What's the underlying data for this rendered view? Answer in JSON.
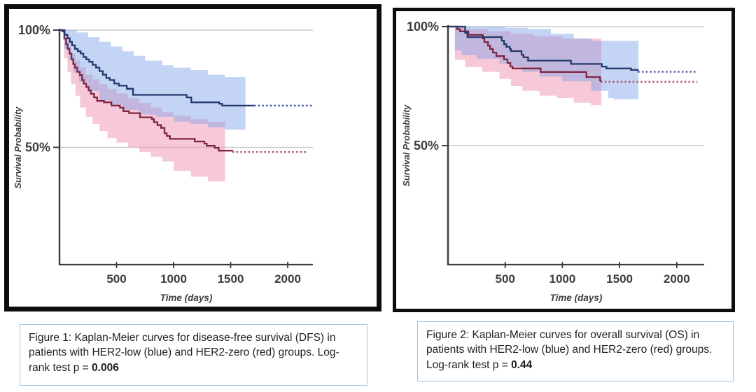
{
  "figures": [
    {
      "caption_prefix": "Figure 1: Kaplan-Meier curves for disease-free survival (DFS) in patients with HER2-low (blue) and HER2-zero (red) groups. Log-rank test p = ",
      "p_value": "0.006"
    },
    {
      "caption_prefix": "Figure 2: Kaplan-Meier curves for overall survival (OS) in patients with HER2-low (blue) and HER2-zero (red) groups. Log-rank test p = ",
      "p_value": "0.44"
    }
  ],
  "colors": {
    "blue_line": "#24386d",
    "red_line": "#7c2440",
    "blue_dotted": "#4353a4",
    "red_dotted": "#b2506b",
    "blue_band": "rgba(125,160,230,0.45)",
    "pink_band": "rgba(238,135,168,0.45)",
    "grid": "#cbcbcb",
    "axis": "#3c3c3c",
    "tick_text": "#3d3d3d",
    "caption_border": "#9dc3e6",
    "frame": "#0d0d0d"
  },
  "chart_data": [
    {
      "type": "line",
      "subtype": "kaplan-meier-step",
      "outcome": "disease-free survival (DFS)",
      "xlabel": "Time (days)",
      "ylabel": "Survival Probability",
      "xticks": [
        500,
        1000,
        1500,
        2000
      ],
      "yticks": [
        {
          "value": 100,
          "label": "100%"
        },
        {
          "value": 50,
          "label": "50%"
        }
      ],
      "xlim": [
        0,
        2230
      ],
      "ylim": [
        0,
        100
      ],
      "grid": "horizontal-at-yticks",
      "legend": "none",
      "series": [
        {
          "name": "HER2-low",
          "color": "blue",
          "steps": [
            [
              0,
              100
            ],
            [
              45,
              98
            ],
            [
              70,
              96.5
            ],
            [
              90,
              95
            ],
            [
              110,
              93.5
            ],
            [
              135,
              92
            ],
            [
              160,
              91
            ],
            [
              185,
              90
            ],
            [
              210,
              88.5
            ],
            [
              235,
              87.5
            ],
            [
              260,
              86.5
            ],
            [
              290,
              85.2
            ],
            [
              320,
              84
            ],
            [
              350,
              82.5
            ],
            [
              380,
              81
            ],
            [
              410,
              79.6
            ],
            [
              440,
              78.7
            ],
            [
              480,
              77.2
            ],
            [
              520,
              76.3
            ],
            [
              590,
              75
            ],
            [
              645,
              72.4
            ],
            [
              1115,
              71.3
            ],
            [
              1155,
              69.2
            ],
            [
              1400,
              68.6
            ],
            [
              1425,
              67.8
            ],
            [
              1705,
              67.8
            ]
          ],
          "censored_extension": {
            "from": 1705,
            "to": 2230,
            "pct": 67.8
          },
          "ci_upper": [
            [
              0,
              100
            ],
            [
              150,
              99
            ],
            [
              250,
              97
            ],
            [
              350,
              95
            ],
            [
              450,
              93
            ],
            [
              550,
              91
            ],
            [
              650,
              89
            ],
            [
              750,
              87
            ],
            [
              900,
              85
            ],
            [
              1000,
              84
            ],
            [
              1150,
              83
            ],
            [
              1300,
              81
            ],
            [
              1450,
              80
            ],
            [
              1630,
              80
            ]
          ],
          "ci_lower": [
            [
              0,
              100
            ],
            [
              40,
              92
            ],
            [
              80,
              87
            ],
            [
              120,
              82
            ],
            [
              170,
              78
            ],
            [
              250,
              74
            ],
            [
              350,
              70
            ],
            [
              450,
              68
            ],
            [
              550,
              66
            ],
            [
              700,
              64
            ],
            [
              850,
              63
            ],
            [
              1000,
              61
            ],
            [
              1150,
              60
            ],
            [
              1300,
              58.5
            ],
            [
              1450,
              57.5
            ],
            [
              1630,
              57.5
            ]
          ]
        },
        {
          "name": "HER2-zero",
          "color": "red",
          "steps": [
            [
              0,
              100
            ],
            [
              25,
              99.4
            ],
            [
              42,
              96.4
            ],
            [
              58,
              94
            ],
            [
              72,
              92
            ],
            [
              87,
              90
            ],
            [
              105,
              87.6
            ],
            [
              120,
              85.5
            ],
            [
              135,
              84
            ],
            [
              155,
              82.2
            ],
            [
              178,
              80.8
            ],
            [
              198,
              78.7
            ],
            [
              212,
              77.2
            ],
            [
              235,
              75.7
            ],
            [
              255,
              74.3
            ],
            [
              275,
              72.8
            ],
            [
              303,
              71.3
            ],
            [
              330,
              69.8
            ],
            [
              390,
              69.2
            ],
            [
              455,
              67.8
            ],
            [
              530,
              66.9
            ],
            [
              560,
              65.4
            ],
            [
              610,
              64.6
            ],
            [
              705,
              62.8
            ],
            [
              810,
              62
            ],
            [
              828,
              60.7
            ],
            [
              858,
              59.5
            ],
            [
              890,
              58.3
            ],
            [
              920,
              56
            ],
            [
              940,
              54.8
            ],
            [
              968,
              53.6
            ],
            [
              1185,
              52.5
            ],
            [
              1270,
              51.6
            ],
            [
              1290,
              50.7
            ],
            [
              1360,
              49.8
            ],
            [
              1395,
              48.6
            ],
            [
              1515,
              48.3
            ]
          ],
          "censored_extension": {
            "from": 1515,
            "to": 2180,
            "pct": 48
          },
          "ci_upper": [
            [
              0,
              100
            ],
            [
              40,
              97
            ],
            [
              70,
              93
            ],
            [
              100,
              90
            ],
            [
              140,
              87
            ],
            [
              180,
              84
            ],
            [
              230,
              81
            ],
            [
              290,
              79
            ],
            [
              350,
              77
            ],
            [
              420,
              75
            ],
            [
              500,
              73
            ],
            [
              600,
              71
            ],
            [
              700,
              69
            ],
            [
              800,
              67
            ],
            [
              900,
              65
            ],
            [
              1000,
              63.5
            ],
            [
              1150,
              62
            ],
            [
              1300,
              61
            ],
            [
              1450,
              60.5
            ]
          ],
          "ci_lower": [
            [
              0,
              100
            ],
            [
              40,
              88
            ],
            [
              70,
              82
            ],
            [
              100,
              77
            ],
            [
              140,
              72
            ],
            [
              180,
              67
            ],
            [
              230,
              63
            ],
            [
              290,
              60
            ],
            [
              350,
              57
            ],
            [
              420,
              54
            ],
            [
              500,
              52
            ],
            [
              600,
              50
            ],
            [
              700,
              48
            ],
            [
              800,
              46
            ],
            [
              900,
              44
            ],
            [
              1000,
              40
            ],
            [
              1150,
              37.5
            ],
            [
              1300,
              35.5
            ],
            [
              1450,
              34
            ]
          ]
        }
      ]
    },
    {
      "type": "line",
      "subtype": "kaplan-meier-step",
      "outcome": "overall survival (OS)",
      "xlabel": "Time (days)",
      "ylabel": "Survival Probability",
      "xticks": [
        500,
        1000,
        1500,
        2000
      ],
      "yticks": [
        {
          "value": 100,
          "label": "100%"
        },
        {
          "value": 50,
          "label": "50%"
        }
      ],
      "xlim": [
        0,
        2240
      ],
      "ylim": [
        0,
        100
      ],
      "grid": "horizontal-at-yticks",
      "legend": "none",
      "series": [
        {
          "name": "HER2-low",
          "color": "blue",
          "steps": [
            [
              0,
              100
            ],
            [
              150,
              97.4
            ],
            [
              170,
              95.6
            ],
            [
              470,
              94.1
            ],
            [
              490,
              92.6
            ],
            [
              510,
              91.5
            ],
            [
              540,
              90.6
            ],
            [
              550,
              89.7
            ],
            [
              643,
              88.2
            ],
            [
              660,
              87.1
            ],
            [
              700,
              85.7
            ],
            [
              1075,
              84.3
            ],
            [
              1345,
              83.2
            ],
            [
              1385,
              82.4
            ],
            [
              1600,
              81.8
            ],
            [
              1660,
              81.3
            ]
          ],
          "censored_extension": {
            "from": 1660,
            "to": 2180,
            "pct": 81
          },
          "ci_upper": [
            [
              0,
              100
            ],
            [
              300,
              100
            ],
            [
              500,
              99.5
            ],
            [
              700,
              99
            ],
            [
              900,
              97
            ],
            [
              1100,
              95
            ],
            [
              1250,
              94
            ],
            [
              1665,
              94
            ]
          ],
          "ci_lower": [
            [
              0,
              100
            ],
            [
              60,
              90
            ],
            [
              120,
              88
            ],
            [
              250,
              86.5
            ],
            [
              450,
              84.5
            ],
            [
              550,
              83
            ],
            [
              650,
              81
            ],
            [
              800,
              79
            ],
            [
              1000,
              77
            ],
            [
              1250,
              73
            ],
            [
              1400,
              70
            ],
            [
              1450,
              69.5
            ],
            [
              1665,
              69.5
            ]
          ]
        },
        {
          "name": "HER2-zero",
          "color": "red",
          "steps": [
            [
              0,
              100
            ],
            [
              80,
              98.9
            ],
            [
              105,
              98
            ],
            [
              178,
              96.5
            ],
            [
              305,
              95
            ],
            [
              318,
              93.5
            ],
            [
              350,
              92
            ],
            [
              368,
              90.6
            ],
            [
              393,
              89.1
            ],
            [
              423,
              87.6
            ],
            [
              490,
              86.2
            ],
            [
              520,
              84.7
            ],
            [
              545,
              83.2
            ],
            [
              565,
              82.4
            ],
            [
              810,
              80.9
            ],
            [
              1210,
              78.8
            ],
            [
              1330,
              77.4
            ],
            [
              1335,
              76.8
            ]
          ],
          "censored_extension": {
            "from": 1335,
            "to": 2180,
            "pct": 76.8
          },
          "ci_upper": [
            [
              0,
              100
            ],
            [
              150,
              99
            ],
            [
              350,
              98
            ],
            [
              550,
              97
            ],
            [
              750,
              96
            ],
            [
              1000,
              95
            ],
            [
              1340,
              94.5
            ]
          ],
          "ci_lower": [
            [
              0,
              100
            ],
            [
              60,
              86
            ],
            [
              150,
              83
            ],
            [
              300,
              81
            ],
            [
              450,
              78
            ],
            [
              550,
              75
            ],
            [
              650,
              73
            ],
            [
              800,
              71
            ],
            [
              950,
              70
            ],
            [
              1100,
              68
            ],
            [
              1250,
              67
            ],
            [
              1340,
              65.5
            ]
          ]
        }
      ]
    }
  ]
}
